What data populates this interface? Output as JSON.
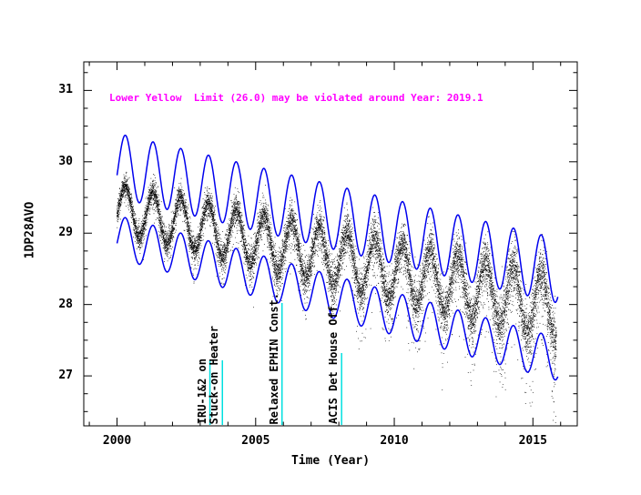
{
  "figure": {
    "background": "#ffffff"
  },
  "chart_data": {
    "type": "scatter",
    "title": "",
    "xlabel": "Time (Year)",
    "ylabel": "1DP28AVO",
    "xlim": [
      1998.8,
      2016.6
    ],
    "ylim": [
      26.3,
      31.4
    ],
    "xticks": [
      2000,
      2005,
      2010,
      2015
    ],
    "xtick_labels": [
      "2000",
      "2005",
      "2010",
      "2015"
    ],
    "yticks": [
      27,
      28,
      29,
      30,
      31
    ],
    "ytick_labels": [
      "27",
      "28",
      "29",
      "30",
      "31"
    ],
    "x_minor_step": 1,
    "y_minor_step": 0.25,
    "grid": false,
    "axis_color": "#000000",
    "warning_text": "Lower Yellow  Limit (26.0) may be violated around Year: 2019.1",
    "warning_color": "#ff00ff",
    "scatter": {
      "name": "1DP28AVO telemetry",
      "color": "#000000",
      "t_start": 2000.0,
      "t_end": 2015.85,
      "mean_start": 29.35,
      "slope": -0.088,
      "seasonal_period_years": 1,
      "seasonal_amplitude": 0.33,
      "amplitude_growth": 0.007,
      "phase": 0.05,
      "noise": 0.09,
      "noise_growth": 0.009,
      "spike_prob": 0.012,
      "spike_prob_growth": 0.004,
      "spike_depth": 0.9,
      "points_per_year": 950,
      "seed": 42
    },
    "envelopes": [
      {
        "name": "upper_envelope",
        "color": "#0000ee",
        "t_start": 2000.0,
        "t_end": 2015.9,
        "mean_start": 29.95,
        "slope": -0.093,
        "amplitude": 0.45,
        "phase": 0.05
      },
      {
        "name": "lower_envelope",
        "color": "#0000ee",
        "t_start": 2000.0,
        "t_end": 2015.9,
        "mean_start": 28.95,
        "slope": -0.108,
        "amplitude": 0.3,
        "phase": 0.05
      }
    ],
    "events": [
      {
        "x": 2003.35,
        "label": "IRU-1&2 on",
        "color": "#00e0e0",
        "line_height": 72
      },
      {
        "x": 2003.8,
        "label": "Stuck-on Heater",
        "color": "#00e0e0",
        "line_height": 72
      },
      {
        "x": 2005.95,
        "label": "Relaxed EPHIN Const.",
        "color": "#00e0e0",
        "line_height": 135
      },
      {
        "x": 2008.1,
        "label": "ACIS Det House Off",
        "color": "#00e0e0",
        "line_height": 80
      }
    ]
  }
}
